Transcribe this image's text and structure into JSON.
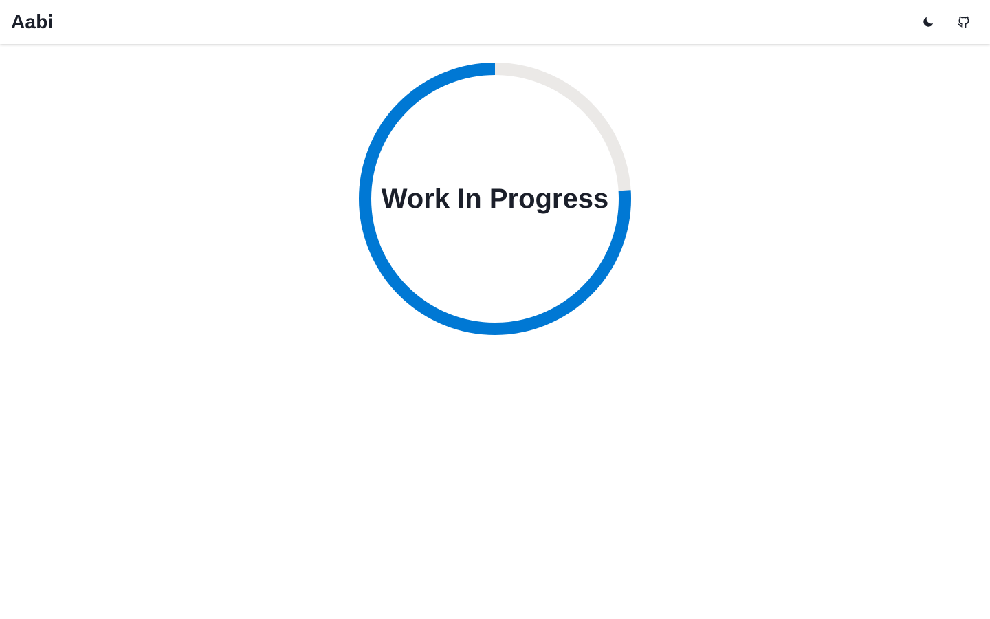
{
  "header": {
    "brand": "Aabi",
    "actions": [
      {
        "icon": "moon-icon",
        "name": "theme-toggle-button"
      },
      {
        "icon": "github-icon",
        "name": "github-link"
      }
    ]
  },
  "main": {
    "progress": {
      "label": "Work In Progress",
      "fraction": 0.76,
      "track_color": "#ebe9e7",
      "fill_color": "#0078d4"
    }
  },
  "colors": {
    "text": "#1b1f2a",
    "background": "#ffffff"
  }
}
